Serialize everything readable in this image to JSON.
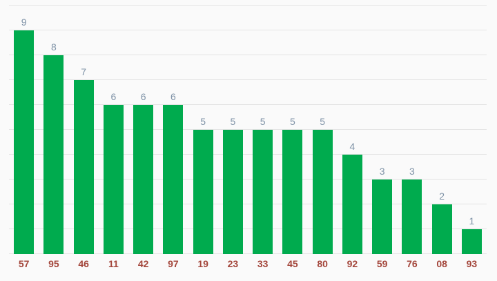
{
  "chart_data": {
    "type": "bar",
    "categories": [
      "57",
      "95",
      "46",
      "11",
      "42",
      "97",
      "19",
      "23",
      "33",
      "45",
      "80",
      "92",
      "59",
      "76",
      "08",
      "93"
    ],
    "values": [
      9,
      8,
      7,
      6,
      6,
      6,
      5,
      5,
      5,
      5,
      5,
      4,
      3,
      3,
      2,
      1
    ],
    "title": "",
    "xlabel": "",
    "ylabel": "",
    "ylim": [
      0,
      10
    ],
    "grid": true,
    "grid_step": 1,
    "legend_position": "none",
    "value_labels_shown": true,
    "colors": {
      "bar": "#00ab4e",
      "value_label": "#7f93a7",
      "category_label": "#a3453a",
      "gridline": "#e3e3e3",
      "background": "#fafafa"
    }
  }
}
